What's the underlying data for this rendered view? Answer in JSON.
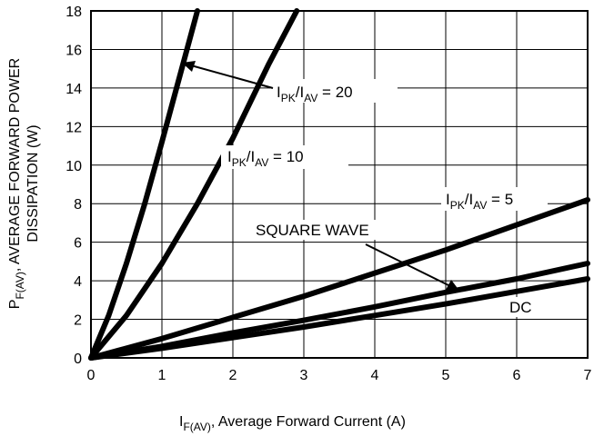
{
  "chart_data": {
    "type": "line",
    "x_axis": {
      "label_main": "I",
      "label_sub": "F(AV)",
      "label_rest": ", Average Forward Current (A)",
      "range": [
        0,
        7
      ],
      "ticks": [
        0,
        1,
        2,
        3,
        4,
        5,
        6,
        7
      ]
    },
    "y_axis": {
      "label_main": "P",
      "label_sub": "F(AV)",
      "label_rest": ", AVERAGE FORWARD POWER",
      "label_line2": "DISSIPATION (W)",
      "range": [
        0,
        18
      ],
      "ticks": [
        0,
        2,
        4,
        6,
        8,
        10,
        12,
        14,
        16,
        18
      ]
    },
    "grid": true,
    "series": [
      {
        "name": "IPK/IAV = 20",
        "x": [
          0,
          0.25,
          0.5,
          0.75,
          1.0,
          1.25,
          1.5
        ],
        "y": [
          0,
          2.2,
          4.9,
          7.9,
          11.2,
          14.6,
          18.0
        ]
      },
      {
        "name": "IPK/IAV = 10",
        "x": [
          0,
          0.5,
          1.0,
          1.5,
          2.0,
          2.5,
          2.9
        ],
        "y": [
          0,
          2.2,
          4.9,
          8.0,
          11.4,
          15.2,
          18.0
        ]
      },
      {
        "name": "IPK/IAV = 5",
        "x": [
          0,
          1,
          2,
          3,
          4,
          5,
          6,
          7
        ],
        "y": [
          0,
          1.0,
          2.1,
          3.2,
          4.4,
          5.6,
          6.9,
          8.2
        ]
      },
      {
        "name": "SQUARE WAVE",
        "x": [
          0,
          1,
          2,
          3,
          4,
          5,
          6,
          7
        ],
        "y": [
          0,
          0.6,
          1.3,
          1.95,
          2.65,
          3.4,
          4.1,
          4.9
        ]
      },
      {
        "name": "DC",
        "x": [
          0,
          1,
          2,
          3,
          4,
          5,
          6,
          7
        ],
        "y": [
          0,
          0.5,
          1.05,
          1.6,
          2.2,
          2.8,
          3.45,
          4.1
        ]
      }
    ],
    "annotations": [
      {
        "main": "I",
        "sub1": "PK",
        "slash": "/I",
        "sub2": "AV",
        "rest": " = 20"
      },
      {
        "main": "I",
        "sub1": "PK",
        "slash": "/I",
        "sub2": "AV",
        "rest": " = 10"
      },
      {
        "main": "I",
        "sub1": "PK",
        "slash": "/I",
        "sub2": "AV",
        "rest": " = 5"
      },
      {
        "text": "SQUARE WAVE"
      },
      {
        "text": "DC"
      }
    ]
  }
}
